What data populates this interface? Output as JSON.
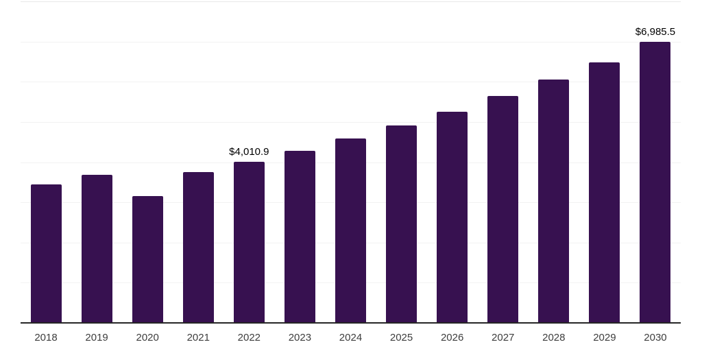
{
  "chart_data": {
    "type": "bar",
    "title": "",
    "xlabel": "",
    "ylabel": "",
    "categories": [
      "2018",
      "2019",
      "2020",
      "2021",
      "2022",
      "2023",
      "2024",
      "2025",
      "2026",
      "2027",
      "2028",
      "2029",
      "2030"
    ],
    "values": [
      3450,
      3680,
      3150,
      3750,
      4010.9,
      4280,
      4590,
      4910,
      5250,
      5640,
      6050,
      6490,
      6985.5
    ],
    "annotations": [
      {
        "category": "2022",
        "label": "$4,010.9"
      },
      {
        "category": "2030",
        "label": "$6,985.5"
      }
    ],
    "ylim": [
      0,
      8000
    ],
    "grid_step": 1000,
    "grid": true,
    "legend": false,
    "bar_color": "#371150",
    "gridline_color": "#f2f2f2",
    "top_gridline_color": "#e8e8e8",
    "axis_line_color": "#262626",
    "value_label_color": "#000000",
    "tick_label_color": "#3d3d3d"
  }
}
